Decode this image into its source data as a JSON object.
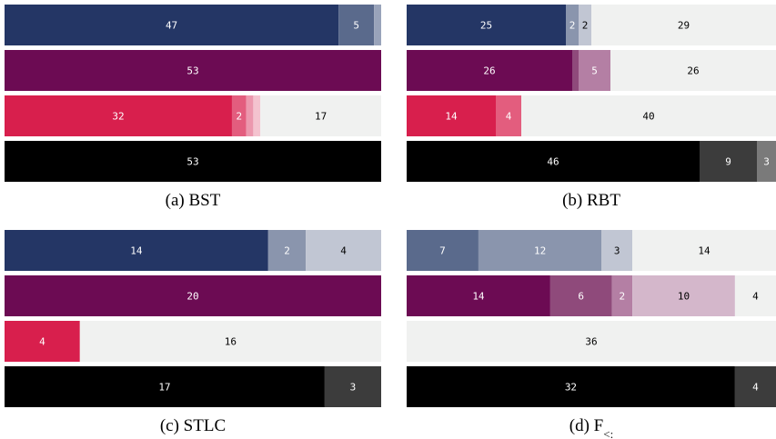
{
  "chart_data": [
    {
      "type": "bar",
      "stacked": true,
      "orientation": "horizontal",
      "caption": "(a) BST",
      "rows": [
        {
          "colors": [
            "#243665",
            "#5a6a8c",
            "#99a3ba",
            "#f0f1f0"
          ],
          "values": [
            47,
            5,
            1,
            0
          ],
          "labels": [
            "47",
            "5",
            "",
            ""
          ]
        },
        {
          "colors": [
            "#6c0b53",
            "#8f4a7b",
            "#b47fa4",
            "#f0f1f0"
          ],
          "values": [
            53,
            0,
            0,
            0
          ],
          "labels": [
            "53",
            "",
            "",
            ""
          ]
        },
        {
          "colors": [
            "#d81f4d",
            "#e35d7e",
            "#ec98ae",
            "#f4c3cf",
            "#f0f1f0"
          ],
          "values": [
            32,
            2,
            1,
            1,
            17
          ],
          "labels": [
            "32",
            "2",
            "",
            "",
            "17"
          ]
        },
        {
          "colors": [
            "#000000",
            "#3c3c3c",
            "#7a7a7a",
            "#f0f1f0"
          ],
          "values": [
            53,
            0,
            0,
            0
          ],
          "labels": [
            "53",
            "",
            "",
            ""
          ]
        }
      ]
    },
    {
      "type": "bar",
      "stacked": true,
      "orientation": "horizontal",
      "caption": "(b) RBT",
      "rows": [
        {
          "colors": [
            "#243665",
            "#8a95ad",
            "#c1c6d3",
            "#f0f1f0"
          ],
          "values": [
            25,
            2,
            2,
            29
          ],
          "labels": [
            "25",
            "2",
            "2",
            "29"
          ]
        },
        {
          "colors": [
            "#6c0b53",
            "#8f4a7b",
            "#b47fa4",
            "#f0f1f0"
          ],
          "values": [
            26,
            1,
            5,
            26
          ],
          "labels": [
            "26",
            "",
            "5",
            "26"
          ]
        },
        {
          "colors": [
            "#d81f4d",
            "#e35d7e",
            "#f0f1f0"
          ],
          "values": [
            14,
            4,
            40
          ],
          "labels": [
            "14",
            "4",
            "40"
          ]
        },
        {
          "colors": [
            "#000000",
            "#3c3c3c",
            "#7a7a7a"
          ],
          "values": [
            46,
            9,
            3
          ],
          "labels": [
            "46",
            "9",
            "3"
          ]
        }
      ]
    },
    {
      "type": "bar",
      "stacked": true,
      "orientation": "horizontal",
      "caption": "(c) STLC",
      "rows": [
        {
          "colors": [
            "#243665",
            "#8a95ad",
            "#c1c6d3"
          ],
          "values": [
            14,
            2,
            4
          ],
          "labels": [
            "14",
            "2",
            "4"
          ]
        },
        {
          "colors": [
            "#6c0b53"
          ],
          "values": [
            20
          ],
          "labels": [
            "20"
          ]
        },
        {
          "colors": [
            "#d81f4d",
            "#f0f1f0"
          ],
          "values": [
            4,
            16
          ],
          "labels": [
            "4",
            "16"
          ]
        },
        {
          "colors": [
            "#000000",
            "#3c3c3c"
          ],
          "values": [
            17,
            3
          ],
          "labels": [
            "17",
            "3"
          ]
        }
      ]
    },
    {
      "type": "bar",
      "stacked": true,
      "orientation": "horizontal",
      "caption": "(d) F",
      "caption_sub": "<:",
      "rows": [
        {
          "colors": [
            "#5a6a8c",
            "#8a95ad",
            "#c1c6d3",
            "#f0f1f0"
          ],
          "values": [
            7,
            12,
            3,
            14
          ],
          "labels": [
            "7",
            "12",
            "3",
            "14"
          ]
        },
        {
          "colors": [
            "#6c0b53",
            "#8f4a7b",
            "#b47fa4",
            "#d4b7cb",
            "#f0f1f0"
          ],
          "values": [
            14,
            6,
            2,
            10,
            4
          ],
          "labels": [
            "14",
            "6",
            "2",
            "10",
            "4"
          ]
        },
        {
          "colors": [
            "#f0f1f0"
          ],
          "values": [
            36
          ],
          "labels": [
            "36"
          ]
        },
        {
          "colors": [
            "#000000",
            "#3c3c3c"
          ],
          "values": [
            32,
            4
          ],
          "labels": [
            "32",
            "4"
          ]
        }
      ]
    }
  ]
}
